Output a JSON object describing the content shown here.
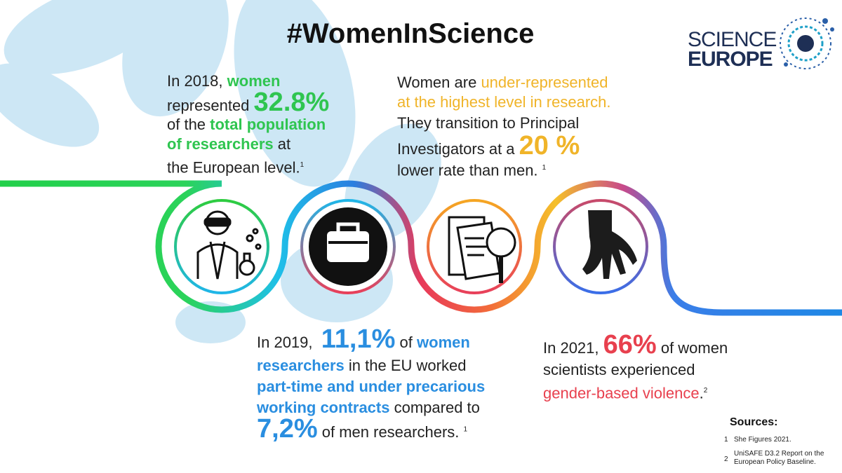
{
  "title": "#WomenInScience",
  "logo": {
    "line1": "SCIENCE",
    "line2": "EUROPE"
  },
  "facts": [
    {
      "parts": [
        "In 2018,",
        "women",
        "represented",
        "32.8%",
        "of the",
        "total population",
        "of researchers",
        "at",
        "the European level.",
        "1"
      ]
    },
    {
      "parts": [
        "Women are",
        "under-represented",
        "at the highest level in research.",
        "They transition to Principal",
        "Investigators at a",
        "20 %",
        "lower rate than men.",
        "1"
      ]
    },
    {
      "parts": [
        "In 2019,",
        "11,1%",
        "of",
        "women",
        "researchers",
        "in the EU worked",
        "part-time and under precarious",
        "working contracts",
        "compared to",
        "7,2%",
        "of men researchers.",
        "1"
      ]
    },
    {
      "parts": [
        "In 2021,",
        "66%",
        "of women",
        "scientists experienced",
        "gender-based violence",
        ".",
        "2"
      ]
    }
  ],
  "sources": {
    "heading": "Sources:",
    "items": [
      {
        "number": "1",
        "text": "She Figures 2021."
      },
      {
        "number": "2",
        "text": "UniSAFE D3.2 Report on the European Policy Baseline."
      }
    ]
  }
}
